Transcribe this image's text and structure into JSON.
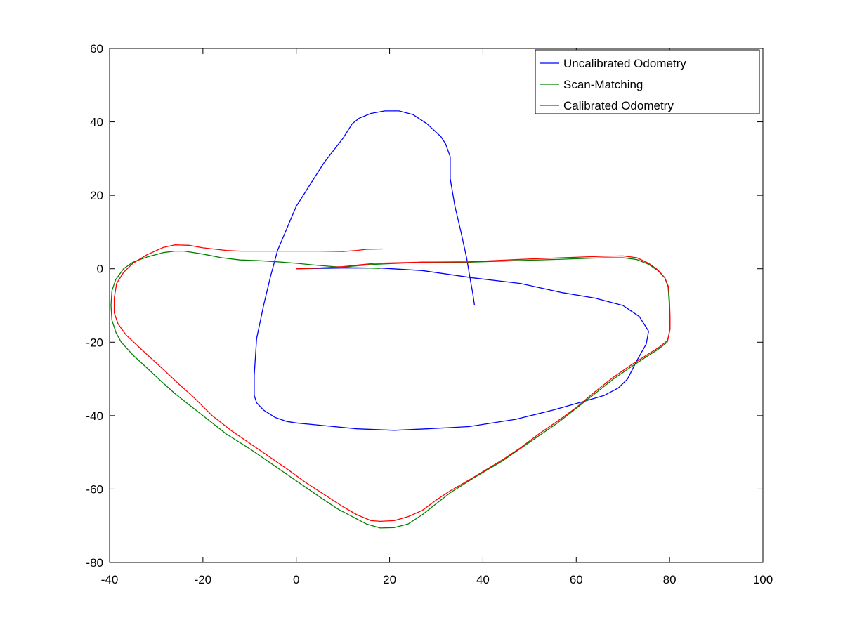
{
  "chart_data": {
    "type": "line",
    "title": "",
    "xlabel": "",
    "ylabel": "",
    "xlim": [
      -40,
      100
    ],
    "ylim": [
      -80,
      60
    ],
    "xticks": [
      -40,
      -20,
      0,
      20,
      40,
      60,
      80,
      100
    ],
    "yticks": [
      -80,
      -60,
      -40,
      -20,
      0,
      20,
      40,
      60
    ],
    "grid": false,
    "legend_position": "top-right",
    "series": [
      {
        "name": "Uncalibrated Odometry",
        "color": "#0000ff",
        "points": [
          [
            0,
            0
          ],
          [
            10,
            0.2
          ],
          [
            18,
            0.2
          ],
          [
            27,
            -0.5
          ],
          [
            38,
            -2.5
          ],
          [
            48,
            -4
          ],
          [
            57,
            -6.5
          ],
          [
            64,
            -8
          ],
          [
            70,
            -10
          ],
          [
            73.5,
            -13
          ],
          [
            75.5,
            -17
          ],
          [
            75,
            -20.5
          ],
          [
            73,
            -25
          ],
          [
            71,
            -30
          ],
          [
            69,
            -32.5
          ],
          [
            66,
            -34.5
          ],
          [
            62,
            -36
          ],
          [
            55,
            -38.5
          ],
          [
            47,
            -41
          ],
          [
            37,
            -43
          ],
          [
            28,
            -43.6
          ],
          [
            21,
            -44
          ],
          [
            13,
            -43.6
          ],
          [
            5,
            -42.6
          ],
          [
            0,
            -42
          ],
          [
            -2,
            -41.6
          ],
          [
            -4.5,
            -40.5
          ],
          [
            -7,
            -38.5
          ],
          [
            -8.5,
            -36.5
          ],
          [
            -9,
            -34.5
          ],
          [
            -9,
            -29
          ],
          [
            -8.5,
            -19
          ],
          [
            -7,
            -10
          ],
          [
            -5.5,
            -2
          ],
          [
            -4,
            5
          ],
          [
            -2,
            11
          ],
          [
            0,
            17
          ],
          [
            3,
            23
          ],
          [
            6,
            29
          ],
          [
            10,
            35.5
          ],
          [
            12,
            39.5
          ],
          [
            13.5,
            41
          ],
          [
            16,
            42.3
          ],
          [
            19,
            43
          ],
          [
            22,
            43
          ],
          [
            25,
            42
          ],
          [
            28,
            39.5
          ],
          [
            31,
            36
          ],
          [
            32,
            34
          ],
          [
            33,
            30.5
          ],
          [
            33,
            24.5
          ],
          [
            34,
            17
          ],
          [
            35.3,
            10
          ],
          [
            36.5,
            3
          ],
          [
            37.3,
            -3
          ],
          [
            37.8,
            -6.5
          ],
          [
            38.2,
            -10
          ]
        ]
      },
      {
        "name": "Scan-Matching",
        "color": "#008000",
        "points": [
          [
            0,
            0
          ],
          [
            5,
            0.2
          ],
          [
            10,
            0.5
          ],
          [
            17,
            1.2
          ],
          [
            27,
            1.8
          ],
          [
            37,
            1.8
          ],
          [
            47,
            2.2
          ],
          [
            57,
            2.6
          ],
          [
            66,
            3
          ],
          [
            70,
            3
          ],
          [
            73,
            2.5
          ],
          [
            75.5,
            1.2
          ],
          [
            77.5,
            -0.5
          ],
          [
            79,
            -2.5
          ],
          [
            79.7,
            -5
          ],
          [
            79.9,
            -9
          ],
          [
            80,
            -13
          ],
          [
            80,
            -17
          ],
          [
            79.5,
            -20
          ],
          [
            77.5,
            -22
          ],
          [
            75,
            -24
          ],
          [
            72,
            -26.5
          ],
          [
            68,
            -30
          ],
          [
            64,
            -34
          ],
          [
            60,
            -38
          ],
          [
            56,
            -42
          ],
          [
            52,
            -45.5
          ],
          [
            48,
            -49
          ],
          [
            44,
            -52.5
          ],
          [
            38,
            -57
          ],
          [
            33,
            -61
          ],
          [
            30,
            -64
          ],
          [
            27,
            -67
          ],
          [
            24,
            -69.5
          ],
          [
            21,
            -70.5
          ],
          [
            18,
            -70.6
          ],
          [
            15,
            -69.5
          ],
          [
            12,
            -67.5
          ],
          [
            9,
            -65.5
          ],
          [
            6,
            -63
          ],
          [
            2,
            -59.5
          ],
          [
            -2,
            -56
          ],
          [
            -6,
            -52.5
          ],
          [
            -10,
            -49
          ],
          [
            -15,
            -45
          ],
          [
            -20,
            -40
          ],
          [
            -23,
            -37
          ],
          [
            -26,
            -34
          ],
          [
            -29.5,
            -30
          ],
          [
            -32,
            -27
          ],
          [
            -35,
            -23.5
          ],
          [
            -37.5,
            -20
          ],
          [
            -38.6,
            -17.5
          ],
          [
            -39.5,
            -14
          ],
          [
            -39.7,
            -10
          ],
          [
            -39.5,
            -6
          ],
          [
            -38.7,
            -3
          ],
          [
            -37,
            0
          ],
          [
            -35,
            1.8
          ],
          [
            -32,
            3.2
          ],
          [
            -28.5,
            4.4
          ],
          [
            -26,
            4.8
          ],
          [
            -24,
            4.8
          ],
          [
            -20,
            4
          ],
          [
            -16,
            3
          ],
          [
            -12,
            2.4
          ],
          [
            -8,
            2.2
          ],
          [
            -4,
            1.9
          ],
          [
            0,
            1.5
          ],
          [
            4,
            1
          ],
          [
            8,
            0.6
          ],
          [
            12,
            0.3
          ],
          [
            18,
            0.1
          ]
        ]
      },
      {
        "name": "Calibrated Odometry",
        "color": "#ff0000",
        "points": [
          [
            0,
            0
          ],
          [
            5,
            0.2
          ],
          [
            10,
            0.6
          ],
          [
            17,
            1.5
          ],
          [
            27,
            1.8
          ],
          [
            37,
            1.9
          ],
          [
            47,
            2.5
          ],
          [
            57,
            3
          ],
          [
            66,
            3.4
          ],
          [
            70,
            3.5
          ],
          [
            73,
            3
          ],
          [
            75.5,
            1.5
          ],
          [
            77.5,
            -0.3
          ],
          [
            79,
            -2.5
          ],
          [
            79.8,
            -5
          ],
          [
            80,
            -9
          ],
          [
            80.1,
            -13
          ],
          [
            80.1,
            -16.5
          ],
          [
            79.6,
            -19.5
          ],
          [
            77.5,
            -21.6
          ],
          [
            75,
            -23.6
          ],
          [
            72,
            -26
          ],
          [
            68,
            -29.5
          ],
          [
            64,
            -33.5
          ],
          [
            60,
            -37.8
          ],
          [
            56,
            -41.5
          ],
          [
            52,
            -45
          ],
          [
            48,
            -48.8
          ],
          [
            44,
            -52.2
          ],
          [
            38,
            -56.8
          ],
          [
            33,
            -60.5
          ],
          [
            30,
            -63
          ],
          [
            27,
            -65.8
          ],
          [
            24,
            -67.5
          ],
          [
            21,
            -68.6
          ],
          [
            18,
            -68.8
          ],
          [
            16,
            -68.6
          ],
          [
            13,
            -67
          ],
          [
            10,
            -64.8
          ],
          [
            6,
            -61.5
          ],
          [
            2,
            -58.2
          ],
          [
            -2,
            -54.5
          ],
          [
            -6,
            -51
          ],
          [
            -10,
            -47.5
          ],
          [
            -14,
            -44
          ],
          [
            -18,
            -40
          ],
          [
            -22,
            -35
          ],
          [
            -25,
            -31.6
          ],
          [
            -28,
            -28
          ],
          [
            -31,
            -24.5
          ],
          [
            -34,
            -21
          ],
          [
            -36.5,
            -18
          ],
          [
            -38.2,
            -15
          ],
          [
            -39,
            -12
          ],
          [
            -39,
            -8
          ],
          [
            -38.5,
            -4
          ],
          [
            -37,
            -1
          ],
          [
            -35,
            1.5
          ],
          [
            -32,
            3.8
          ],
          [
            -28.5,
            5.8
          ],
          [
            -26,
            6.5
          ],
          [
            -23,
            6.4
          ],
          [
            -20,
            5.7
          ],
          [
            -15,
            5
          ],
          [
            -12,
            4.8
          ],
          [
            -6,
            4.8
          ],
          [
            0,
            4.8
          ],
          [
            5,
            4.8
          ],
          [
            10,
            4.7
          ],
          [
            13,
            5
          ],
          [
            15,
            5.3
          ],
          [
            18.5,
            5.4
          ]
        ]
      }
    ]
  }
}
